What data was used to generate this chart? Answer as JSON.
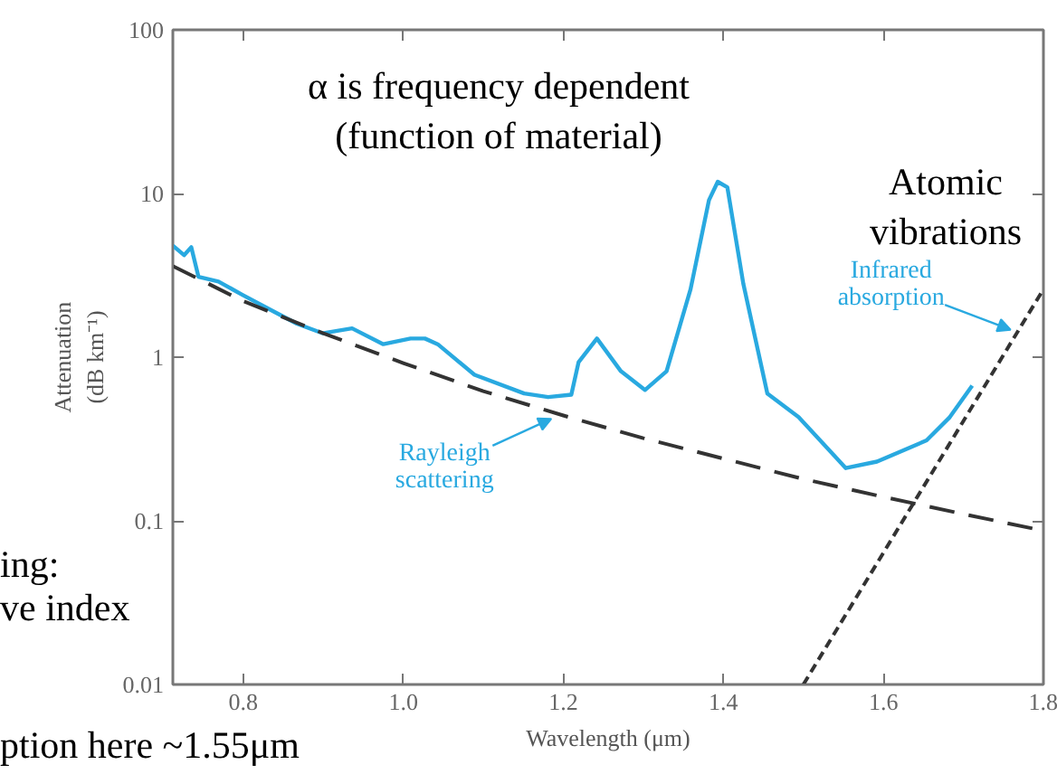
{
  "chart_data": {
    "type": "line",
    "xlabel": "Wavelength (μm)",
    "ylabel": "Attenuation\n(dB km⁻¹)",
    "log": "y",
    "grid": false,
    "xlim": [
      0.712,
      1.8
    ],
    "xticks": [
      0.8,
      {
        "value": 1.0,
        "label": "1.0"
      },
      1.2,
      1.4,
      1.6,
      1.8
    ],
    "ylim": [
      0.01,
      100
    ],
    "yticks": [
      0.01,
      0.1,
      1,
      10,
      100
    ],
    "series": [
      {
        "color": "#29a9e0",
        "line_style": "solid",
        "x": [
          0.712,
          0.726,
          0.735,
          0.744,
          0.769,
          0.799,
          0.838,
          0.867,
          0.899,
          0.936,
          0.975,
          1.009,
          1.027,
          1.043,
          1.089,
          1.151,
          1.181,
          1.21,
          1.219,
          1.242,
          1.272,
          1.302,
          1.329,
          1.359,
          1.382,
          1.393,
          1.405,
          1.425,
          1.455,
          1.494,
          1.553,
          1.592,
          1.654,
          1.683,
          1.711
        ],
        "values": [
          4.8,
          4.2,
          4.7,
          3.1,
          2.9,
          2.4,
          1.9,
          1.6,
          1.4,
          1.5,
          1.2,
          1.3,
          1.3,
          1.2,
          0.78,
          0.6,
          0.57,
          0.59,
          0.93,
          1.3,
          0.82,
          0.63,
          0.82,
          2.6,
          9.1,
          11.8,
          10.9,
          2.8,
          0.6,
          0.43,
          0.21,
          0.23,
          0.31,
          0.43,
          0.67
        ]
      },
      {
        "color": "#333333",
        "line_style": "dashed",
        "x": [
          0.712,
          0.8,
          0.9,
          1.0,
          1.1,
          1.2,
          1.3,
          1.4,
          1.5,
          1.6,
          1.7,
          1.8
        ],
        "values": [
          3.6,
          2.2,
          1.4,
          0.92,
          0.62,
          0.44,
          0.32,
          0.24,
          0.18,
          0.14,
          0.11,
          0.087
        ]
      },
      {
        "color": "#333333",
        "line_style": "dotted",
        "x": [
          1.5,
          1.8
        ],
        "values": [
          0.01,
          2.6
        ]
      }
    ],
    "annotations": [
      "α is frequency dependent\n(function of material)",
      "Atomic\nvibrations",
      {
        "text": "Infrared\nabsorption",
        "x": 1.759,
        "y": 1.47
      },
      {
        "text": "Rayleigh\nscattering",
        "x": 1.185,
        "y": 0.42
      },
      "ing:\nve index",
      "ption here ~1.55μm"
    ]
  }
}
